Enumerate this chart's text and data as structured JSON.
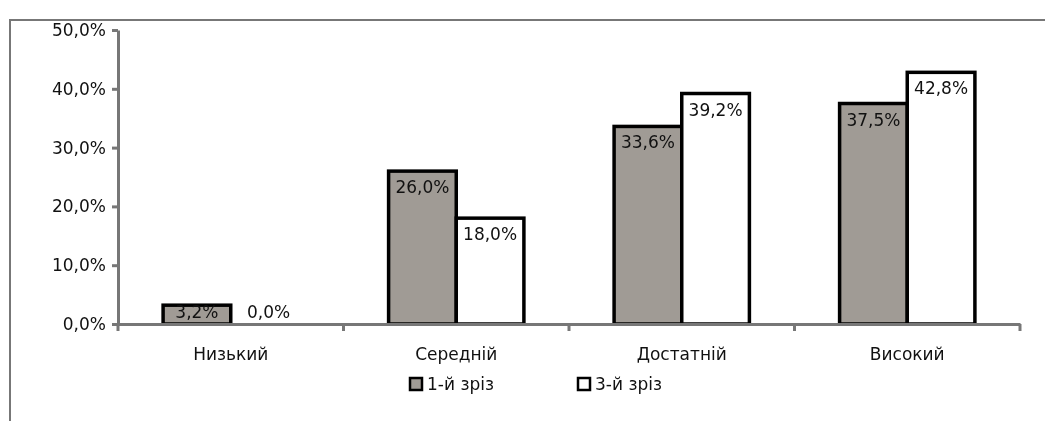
{
  "chart_data": {
    "type": "bar",
    "categories": [
      "Низький",
      "Середній",
      "Достатній",
      "Високий"
    ],
    "series": [
      {
        "name": "1-й зріз",
        "color": "#a09b95",
        "values": [
          3.2,
          26.0,
          33.6,
          37.5
        ]
      },
      {
        "name": "3-й зріз",
        "color": "#ffffff",
        "values": [
          0.0,
          18.0,
          39.2,
          42.8
        ]
      }
    ],
    "ylim": [
      0,
      50
    ],
    "yticks": [
      {
        "value": 0,
        "label": "0,0%"
      },
      {
        "value": 10,
        "label": "10,0%"
      },
      {
        "value": 20,
        "label": "20,0%"
      },
      {
        "value": 30,
        "label": "30,0%"
      },
      {
        "value": 40,
        "label": "40,0%"
      },
      {
        "value": 50,
        "label": "50,0%"
      }
    ],
    "value_labels": [
      [
        "3,2%",
        "26,0%",
        "33,6%",
        "37,5%"
      ],
      [
        "0,0%",
        "18,0%",
        "39,2%",
        "42,8%"
      ]
    ],
    "grid": false,
    "legend": "bottom"
  }
}
